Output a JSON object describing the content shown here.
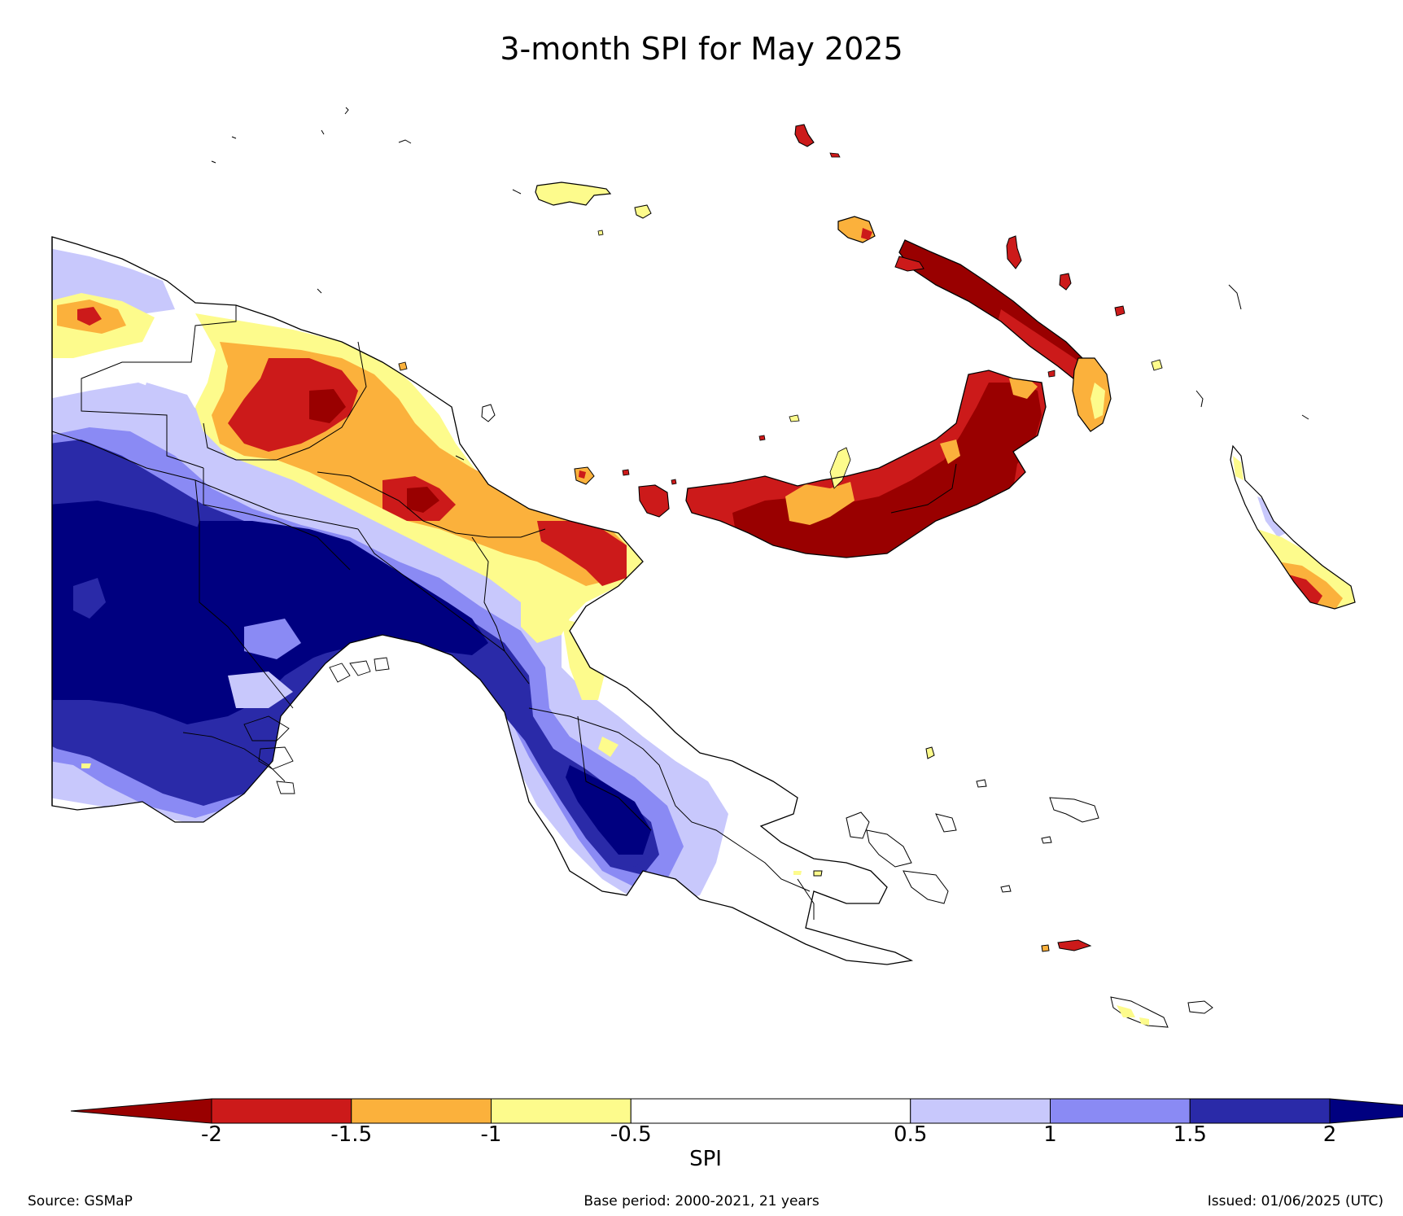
{
  "title": "3-month SPI for May 2025",
  "colorbar": {
    "label": "SPI",
    "ticks": [
      "-2",
      "-1.5",
      "-1",
      "-0.5",
      "0.5",
      "1",
      "1.5",
      "2"
    ],
    "under_color": "#990000",
    "over_color": "#000080",
    "bins": [
      {
        "from": -2.0,
        "to": -1.5,
        "color": "#cc1a1a"
      },
      {
        "from": -1.5,
        "to": -1.0,
        "color": "#fbb13c"
      },
      {
        "from": -1.0,
        "to": -0.5,
        "color": "#fdfb8c"
      },
      {
        "from": -0.5,
        "to": 0.5,
        "color": "#ffffff"
      },
      {
        "from": 0.5,
        "to": 1.0,
        "color": "#c8c8fc"
      },
      {
        "from": 1.0,
        "to": 1.5,
        "color": "#8a8af4"
      },
      {
        "from": 1.5,
        "to": 2.0,
        "color": "#2a2aa8"
      }
    ]
  },
  "footer": {
    "source": "Source: GSMaP",
    "base_period": "Base period: 2000-2021, 21 years",
    "issued": "Issued: 01/06/2025 (UTC)"
  }
}
